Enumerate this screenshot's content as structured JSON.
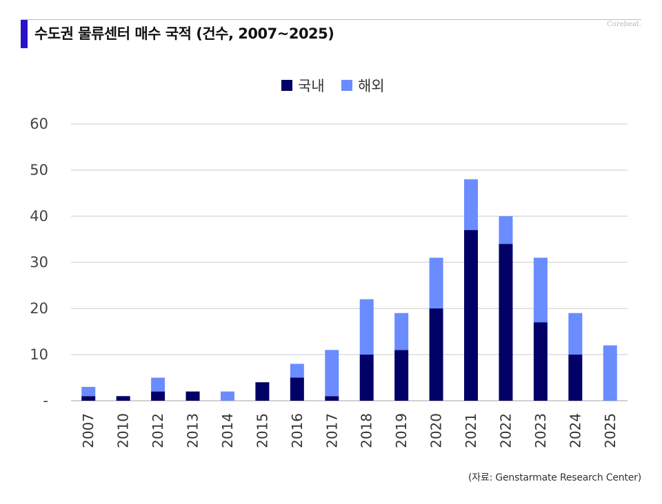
{
  "header": {
    "title": "수도권 물류센터 매수 국적 (건수, 2007~2025)",
    "brand": "Corebeat."
  },
  "footer": {
    "source": "(자료: Genstarmate Research Center)"
  },
  "chart_data": {
    "type": "bar",
    "stacked": true,
    "title": "수도권 물류센터 매수 국적 (건수, 2007~2025)",
    "xlabel": "",
    "ylabel": "",
    "categories": [
      "2007",
      "2010",
      "2012",
      "2013",
      "2014",
      "2015",
      "2016",
      "2017",
      "2018",
      "2019",
      "2020",
      "2021",
      "2022",
      "2023",
      "2024",
      "2025"
    ],
    "series": [
      {
        "name": "국내",
        "color": "#000066",
        "values": [
          1,
          1,
          2,
          2,
          0,
          4,
          5,
          1,
          10,
          11,
          20,
          37,
          34,
          17,
          10,
          0
        ]
      },
      {
        "name": "해외",
        "color": "#6a8cff",
        "values": [
          2,
          0,
          3,
          0,
          2,
          0,
          3,
          10,
          12,
          8,
          11,
          11,
          6,
          14,
          9,
          12
        ]
      }
    ],
    "ylim": [
      0,
      60
    ],
    "yticks": [
      0,
      10,
      20,
      30,
      40,
      50,
      60
    ],
    "ytick_labels": [
      "-",
      "10",
      "20",
      "30",
      "40",
      "50",
      "60"
    ],
    "grid": true,
    "legend": "top-center"
  }
}
